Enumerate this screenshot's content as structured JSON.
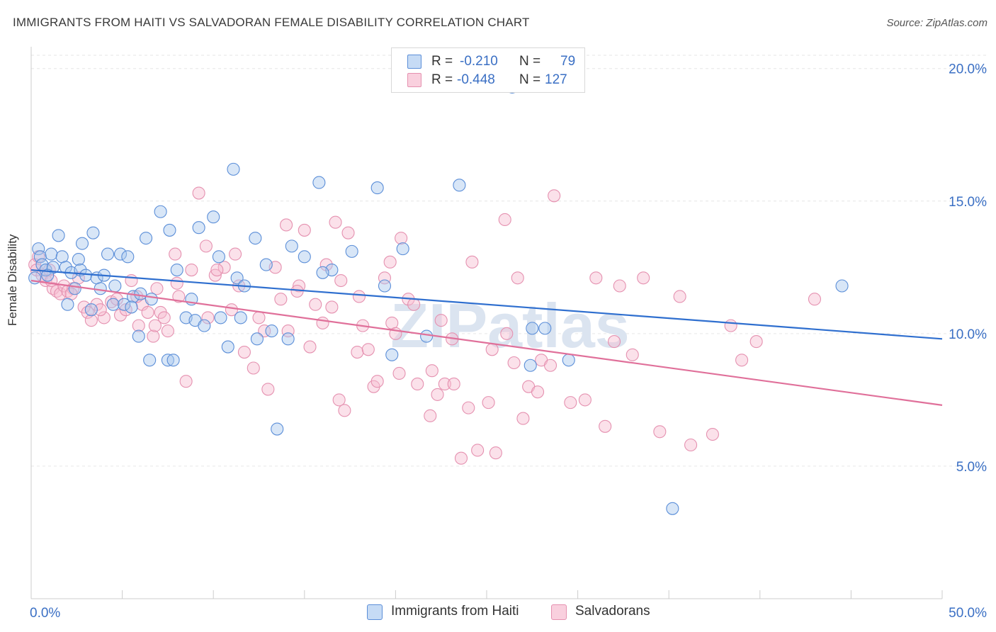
{
  "header": {
    "title": "IMMIGRANTS FROM HAITI VS SALVADORAN FEMALE DISABILITY CORRELATION CHART",
    "source": "Source: ZipAtlas.com"
  },
  "watermark": "ZIPatlas",
  "legend_box": {
    "rows": [
      {
        "r_label": "R =",
        "r_value": "-0.210",
        "n_label": "N =",
        "n_value": "79"
      },
      {
        "r_label": "R =",
        "r_value": "-0.448",
        "n_label": "N =",
        "n_value": "127"
      }
    ]
  },
  "colors": {
    "haiti_fill": "#a9c8ee",
    "haiti_stroke": "#5b8ed8",
    "haiti_line": "#2f6fcf",
    "salv_fill": "#f6bcd0",
    "salv_stroke": "#e591b0",
    "salv_line": "#e0709a",
    "grid": "#e6e6e6",
    "tick_text": "#3a6fc4"
  },
  "chart_data": {
    "type": "scatter",
    "title": "IMMIGRANTS FROM HAITI VS SALVADORAN FEMALE DISABILITY CORRELATION CHART",
    "xlabel": "",
    "ylabel": "Female Disability",
    "xlim": [
      0,
      50
    ],
    "ylim": [
      0,
      20.5
    ],
    "x_tick_labels": [
      "0.0%",
      "50.0%"
    ],
    "y_ticks": [
      5,
      10,
      15,
      20
    ],
    "y_tick_labels": [
      "5.0%",
      "10.0%",
      "15.0%",
      "20.0%"
    ],
    "grid": "horizontal dashed",
    "legend_position": "bottom",
    "series": [
      {
        "name": "Immigrants from Haiti",
        "r": -0.21,
        "n": 79,
        "trend": {
          "x": [
            0,
            50
          ],
          "y": [
            12.4,
            9.8
          ]
        },
        "points": [
          [
            0.2,
            12.1
          ],
          [
            0.4,
            13.2
          ],
          [
            0.5,
            12.9
          ],
          [
            0.6,
            12.6
          ],
          [
            0.8,
            12.4
          ],
          [
            1.1,
            13.0
          ],
          [
            1.5,
            13.7
          ],
          [
            1.7,
            12.9
          ],
          [
            1.9,
            12.5
          ],
          [
            2.2,
            12.3
          ],
          [
            2.6,
            12.8
          ],
          [
            2.7,
            12.4
          ],
          [
            2.8,
            13.4
          ],
          [
            3.0,
            12.2
          ],
          [
            3.4,
            13.8
          ],
          [
            3.6,
            12.1
          ],
          [
            3.8,
            11.7
          ],
          [
            4.2,
            13.0
          ],
          [
            4.5,
            11.1
          ],
          [
            4.6,
            11.8
          ],
          [
            4.9,
            13.0
          ],
          [
            5.3,
            12.9
          ],
          [
            5.6,
            11.4
          ],
          [
            5.9,
            9.9
          ],
          [
            6.3,
            13.6
          ],
          [
            6.6,
            11.3
          ],
          [
            7.1,
            14.6
          ],
          [
            7.5,
            9.0
          ],
          [
            7.6,
            13.9
          ],
          [
            8.0,
            12.4
          ],
          [
            8.5,
            10.6
          ],
          [
            9.0,
            10.5
          ],
          [
            9.2,
            14.0
          ],
          [
            10.0,
            14.4
          ],
          [
            10.4,
            10.6
          ],
          [
            10.8,
            9.5
          ],
          [
            11.1,
            16.2
          ],
          [
            11.3,
            12.1
          ],
          [
            11.5,
            10.6
          ],
          [
            12.4,
            9.8
          ],
          [
            12.9,
            12.6
          ],
          [
            13.2,
            10.1
          ],
          [
            13.5,
            6.4
          ],
          [
            14.1,
            9.8
          ],
          [
            14.3,
            13.3
          ],
          [
            15.0,
            12.9
          ],
          [
            15.8,
            15.7
          ],
          [
            16.5,
            12.4
          ],
          [
            17.6,
            13.1
          ],
          [
            19.0,
            15.5
          ],
          [
            19.4,
            11.8
          ],
          [
            19.8,
            9.2
          ],
          [
            20.4,
            13.2
          ],
          [
            21.7,
            9.9
          ],
          [
            23.5,
            15.6
          ],
          [
            26.4,
            19.3
          ],
          [
            27.4,
            8.8
          ],
          [
            27.5,
            10.2
          ],
          [
            28.2,
            10.2
          ],
          [
            29.5,
            9.0
          ],
          [
            35.2,
            3.4
          ],
          [
            44.5,
            11.8
          ],
          [
            2.0,
            11.1
          ],
          [
            3.3,
            10.9
          ],
          [
            4.0,
            12.2
          ],
          [
            5.1,
            11.1
          ],
          [
            6.0,
            11.5
          ],
          [
            6.5,
            9.0
          ],
          [
            8.8,
            11.3
          ],
          [
            9.5,
            10.3
          ],
          [
            10.3,
            12.9
          ],
          [
            11.7,
            11.8
          ],
          [
            12.3,
            13.6
          ],
          [
            16.0,
            12.3
          ],
          [
            1.2,
            12.5
          ],
          [
            2.4,
            11.7
          ],
          [
            7.8,
            9.0
          ],
          [
            5.5,
            11.0
          ],
          [
            0.9,
            12.2
          ]
        ]
      },
      {
        "name": "Salvadorans",
        "r": -0.448,
        "n": 127,
        "trend": {
          "x": [
            0,
            50
          ],
          "y": [
            12.0,
            7.3
          ]
        },
        "points": [
          [
            0.2,
            12.6
          ],
          [
            0.3,
            12.4
          ],
          [
            0.4,
            12.9
          ],
          [
            0.6,
            12.2
          ],
          [
            0.8,
            12.0
          ],
          [
            1.0,
            12.4
          ],
          [
            1.2,
            11.7
          ],
          [
            1.4,
            11.6
          ],
          [
            1.6,
            11.5
          ],
          [
            1.8,
            11.8
          ],
          [
            2.0,
            11.6
          ],
          [
            2.3,
            11.7
          ],
          [
            2.6,
            12.1
          ],
          [
            2.9,
            11.0
          ],
          [
            3.1,
            10.8
          ],
          [
            3.3,
            10.5
          ],
          [
            3.6,
            11.1
          ],
          [
            4.0,
            10.6
          ],
          [
            4.4,
            11.2
          ],
          [
            4.9,
            10.7
          ],
          [
            5.2,
            10.9
          ],
          [
            5.5,
            12.0
          ],
          [
            5.9,
            10.3
          ],
          [
            6.1,
            11.1
          ],
          [
            6.4,
            10.8
          ],
          [
            6.9,
            11.7
          ],
          [
            7.1,
            10.8
          ],
          [
            7.5,
            10.1
          ],
          [
            7.9,
            13.0
          ],
          [
            8.1,
            11.4
          ],
          [
            8.5,
            8.2
          ],
          [
            8.8,
            12.4
          ],
          [
            9.6,
            13.3
          ],
          [
            10.1,
            12.2
          ],
          [
            10.6,
            12.5
          ],
          [
            11.0,
            10.9
          ],
          [
            11.2,
            13.0
          ],
          [
            11.7,
            9.3
          ],
          [
            12.2,
            8.7
          ],
          [
            12.8,
            10.1
          ],
          [
            13.0,
            7.9
          ],
          [
            13.7,
            11.3
          ],
          [
            14.1,
            10.1
          ],
          [
            14.7,
            11.8
          ],
          [
            15.3,
            9.5
          ],
          [
            16.0,
            10.4
          ],
          [
            16.5,
            11.0
          ],
          [
            16.9,
            7.5
          ],
          [
            17.2,
            7.1
          ],
          [
            17.9,
            9.3
          ],
          [
            18.5,
            9.4
          ],
          [
            18.8,
            8.0
          ],
          [
            19.0,
            8.2
          ],
          [
            19.4,
            12.1
          ],
          [
            19.8,
            10.4
          ],
          [
            20.2,
            8.5
          ],
          [
            20.7,
            11.3
          ],
          [
            21.2,
            8.1
          ],
          [
            21.9,
            6.9
          ],
          [
            22.3,
            7.7
          ],
          [
            22.7,
            8.1
          ],
          [
            23.2,
            8.1
          ],
          [
            23.6,
            5.3
          ],
          [
            24.0,
            7.2
          ],
          [
            24.5,
            5.6
          ],
          [
            25.1,
            7.4
          ],
          [
            25.5,
            5.5
          ],
          [
            26.1,
            10.0
          ],
          [
            26.5,
            8.9
          ],
          [
            27.3,
            8.0
          ],
          [
            27.8,
            7.8
          ],
          [
            28.0,
            9.0
          ],
          [
            28.7,
            15.2
          ],
          [
            30.4,
            7.5
          ],
          [
            31.0,
            12.1
          ],
          [
            31.5,
            6.5
          ],
          [
            32.3,
            11.8
          ],
          [
            33.6,
            12.1
          ],
          [
            34.5,
            6.3
          ],
          [
            35.6,
            11.4
          ],
          [
            36.2,
            5.8
          ],
          [
            37.4,
            6.2
          ],
          [
            38.4,
            10.3
          ],
          [
            39.0,
            9.0
          ],
          [
            39.8,
            9.7
          ],
          [
            43.0,
            11.3
          ],
          [
            9.2,
            15.3
          ],
          [
            14.0,
            14.1
          ],
          [
            16.7,
            14.2
          ],
          [
            20.3,
            13.6
          ],
          [
            26.0,
            14.3
          ],
          [
            4.7,
            11.3
          ],
          [
            5.8,
            11.4
          ],
          [
            6.7,
            9.9
          ],
          [
            7.3,
            10.6
          ],
          [
            8.0,
            11.9
          ],
          [
            9.7,
            10.6
          ],
          [
            10.2,
            12.4
          ],
          [
            11.4,
            11.8
          ],
          [
            12.5,
            10.6
          ],
          [
            13.4,
            12.5
          ],
          [
            14.6,
            11.6
          ],
          [
            15.6,
            11.1
          ],
          [
            16.2,
            12.6
          ],
          [
            17.4,
            13.8
          ],
          [
            18.2,
            10.3
          ],
          [
            19.7,
            12.7
          ],
          [
            21.0,
            11.1
          ],
          [
            22.0,
            8.6
          ],
          [
            23.1,
            9.8
          ],
          [
            24.2,
            12.7
          ],
          [
            25.3,
            9.4
          ],
          [
            26.7,
            12.1
          ],
          [
            28.5,
            8.8
          ],
          [
            29.6,
            7.4
          ],
          [
            32.0,
            9.7
          ],
          [
            33.0,
            9.2
          ],
          [
            3.8,
            10.9
          ],
          [
            2.2,
            11.5
          ],
          [
            1.1,
            12.0
          ],
          [
            6.8,
            10.3
          ],
          [
            15.0,
            13.9
          ],
          [
            17.0,
            12.0
          ],
          [
            18.0,
            11.4
          ],
          [
            20.0,
            10.0
          ],
          [
            22.5,
            10.5
          ],
          [
            27.0,
            6.8
          ]
        ]
      }
    ]
  },
  "bottom_legend": {
    "items": [
      {
        "label": "Immigrants from Haiti"
      },
      {
        "label": "Salvadorans"
      }
    ]
  }
}
